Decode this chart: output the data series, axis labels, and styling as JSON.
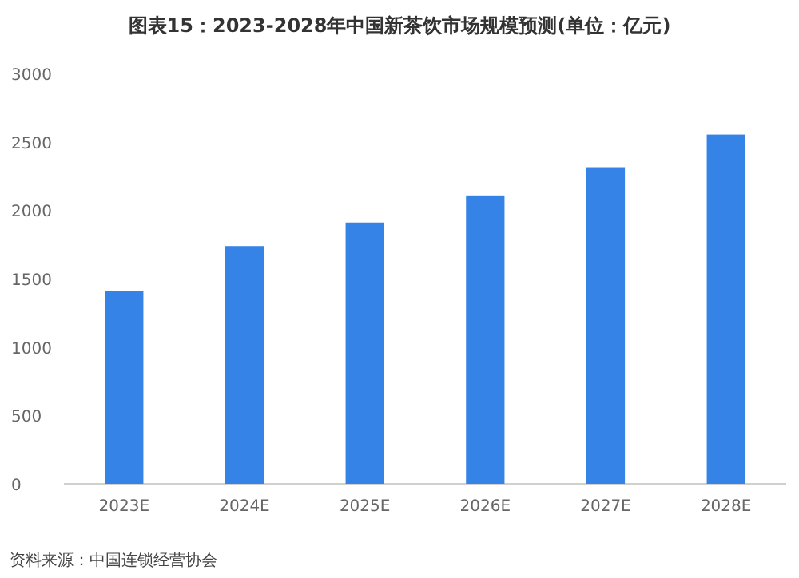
{
  "chart_data": {
    "type": "bar",
    "title": "图表15：2023-2028年中国新茶饮市场规模预测(单位：亿元)",
    "categories": [
      "2023E",
      "2024E",
      "2025E",
      "2026E",
      "2027E",
      "2028E"
    ],
    "values": [
      1410,
      1738,
      1910,
      2108,
      2314,
      2553
    ],
    "color": "#3583e6",
    "ylim": [
      0,
      3000
    ],
    "yticks": [
      0,
      500,
      1000,
      1500,
      2000,
      2500,
      3000
    ],
    "grid": false,
    "annotations": [
      "资料来源：中国连锁经营协会"
    ]
  }
}
